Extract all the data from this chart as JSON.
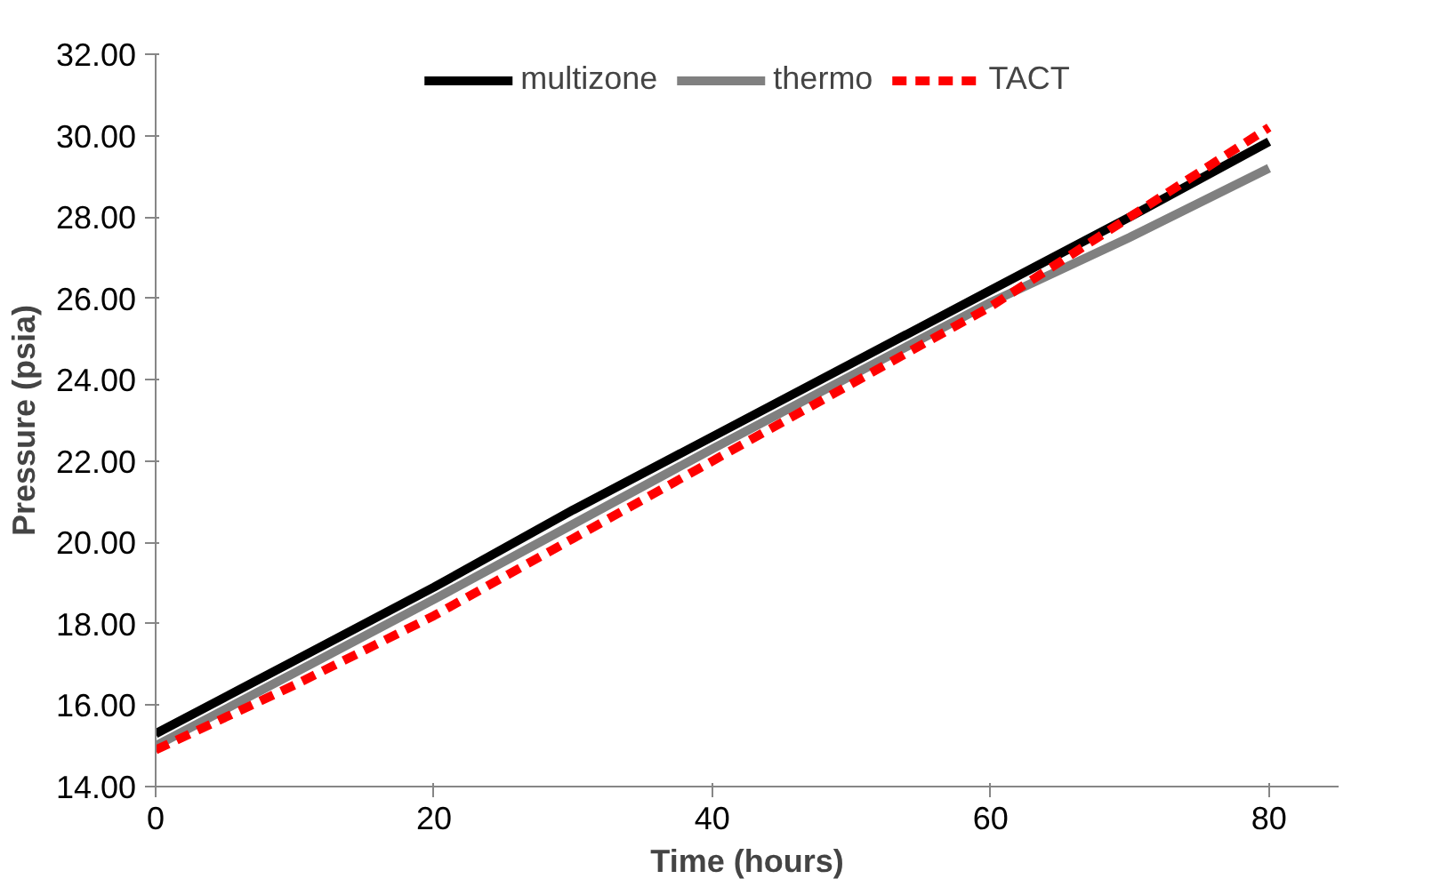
{
  "chart_data": {
    "type": "line",
    "xlabel": "Time (hours)",
    "ylabel": "Pressure (psia)",
    "x": [
      0,
      10,
      20,
      30,
      40,
      50,
      60,
      70,
      80
    ],
    "xlim": [
      0,
      85
    ],
    "xticks": [
      0,
      20,
      40,
      60,
      80
    ],
    "ylim": [
      14,
      32
    ],
    "yticks": [
      {
        "value": 14,
        "label": "14.00"
      },
      {
        "value": 16,
        "label": "16.00"
      },
      {
        "value": 18,
        "label": "18.00"
      },
      {
        "value": 20,
        "label": "20.00"
      },
      {
        "value": 22,
        "label": "22.00"
      },
      {
        "value": 24,
        "label": "24.00"
      },
      {
        "value": 26,
        "label": "26.00"
      },
      {
        "value": 28,
        "label": "28.00"
      },
      {
        "value": 30,
        "label": "30.00"
      },
      {
        "value": 32,
        "label": "32.00"
      }
    ],
    "grid": false,
    "legend": "top",
    "series": [
      {
        "name": "multizone",
        "color": "#000000",
        "values": [
          15.3,
          17.1,
          18.9,
          20.8,
          22.6,
          24.4,
          26.2,
          28.0,
          29.85
        ]
      },
      {
        "name": "thermo",
        "color": "#808080",
        "values": [
          15.0,
          16.8,
          18.6,
          20.45,
          22.3,
          24.1,
          25.9,
          27.5,
          29.2
        ]
      },
      {
        "name": "TACT",
        "color": "#ff0000",
        "line_style": "dashed",
        "values": [
          14.9,
          16.5,
          18.2,
          20.1,
          22.0,
          23.9,
          25.8,
          28.0,
          30.2
        ]
      }
    ]
  }
}
